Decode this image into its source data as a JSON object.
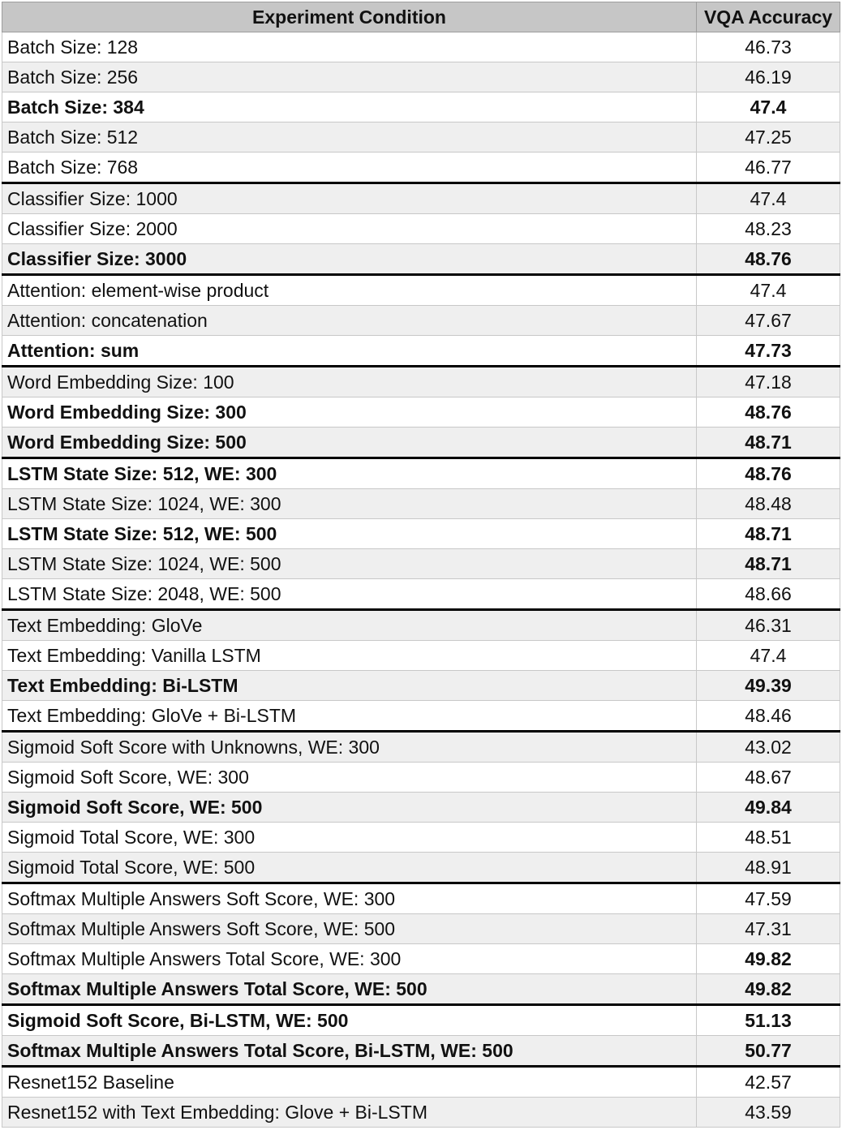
{
  "table": {
    "headers": [
      "Experiment Condition",
      "VQA Accuracy"
    ],
    "groups": [
      {
        "rows": [
          {
            "condition": "Batch Size: 128",
            "accuracy": "46.73"
          },
          {
            "condition": "Batch Size: 256",
            "accuracy": "46.19"
          },
          {
            "condition": "Batch Size: 384",
            "accuracy": "47.4",
            "bold": true
          },
          {
            "condition": "Batch Size: 512",
            "accuracy": "47.25"
          },
          {
            "condition": "Batch Size: 768",
            "accuracy": "46.77"
          }
        ]
      },
      {
        "rows": [
          {
            "condition": "Classifier Size: 1000",
            "accuracy": "47.4"
          },
          {
            "condition": "Classifier Size: 2000",
            "accuracy": "48.23"
          },
          {
            "condition": "Classifier Size: 3000",
            "accuracy": "48.76",
            "bold": true
          }
        ]
      },
      {
        "rows": [
          {
            "condition": "Attention: element-wise product",
            "accuracy": "47.4"
          },
          {
            "condition": "Attention: concatenation",
            "accuracy": "47.67"
          },
          {
            "condition": "Attention: sum",
            "accuracy": "47.73",
            "bold": true
          }
        ]
      },
      {
        "rows": [
          {
            "condition": "Word Embedding Size: 100",
            "accuracy": "47.18"
          },
          {
            "condition": "Word Embedding Size: 300",
            "accuracy": "48.76",
            "bold": true
          },
          {
            "condition": "Word Embedding Size: 500",
            "accuracy": "48.71",
            "bold": true
          }
        ]
      },
      {
        "rows": [
          {
            "condition": "LSTM State Size: 512, WE: 300",
            "accuracy": "48.76",
            "bold": true
          },
          {
            "condition": "LSTM State Size: 1024, WE: 300",
            "accuracy": "48.48"
          },
          {
            "condition": "LSTM State Size: 512, WE: 500",
            "accuracy": "48.71",
            "bold": true
          },
          {
            "condition": "LSTM State Size: 1024, WE: 500",
            "accuracy": "48.71",
            "bold_value": true
          },
          {
            "condition": "LSTM State Size: 2048, WE: 500",
            "accuracy": "48.66"
          }
        ]
      },
      {
        "rows": [
          {
            "condition": "Text Embedding: GloVe",
            "accuracy": "46.31"
          },
          {
            "condition": "Text Embedding: Vanilla LSTM",
            "accuracy": "47.4"
          },
          {
            "condition": "Text Embedding: Bi-LSTM",
            "accuracy": "49.39",
            "bold": true
          },
          {
            "condition": "Text Embedding: GloVe + Bi-LSTM",
            "accuracy": "48.46"
          }
        ]
      },
      {
        "rows": [
          {
            "condition": "Sigmoid Soft Score with Unknowns, WE: 300",
            "accuracy": "43.02"
          },
          {
            "condition": "Sigmoid Soft Score, WE: 300",
            "accuracy": "48.67"
          },
          {
            "condition": "Sigmoid Soft Score, WE: 500",
            "accuracy": "49.84",
            "bold": true
          },
          {
            "condition": "Sigmoid Total Score, WE: 300",
            "accuracy": "48.51"
          },
          {
            "condition": "Sigmoid Total Score, WE: 500",
            "accuracy": "48.91"
          }
        ]
      },
      {
        "rows": [
          {
            "condition": "Softmax Multiple Answers Soft Score, WE: 300",
            "accuracy": "47.59"
          },
          {
            "condition": "Softmax Multiple Answers Soft Score, WE: 500",
            "accuracy": "47.31"
          },
          {
            "condition": "Softmax Multiple Answers Total Score, WE: 300",
            "accuracy": "49.82",
            "bold_value": true
          },
          {
            "condition": "Softmax Multiple Answers Total Score, WE: 500",
            "accuracy": "49.82",
            "bold": true
          }
        ]
      },
      {
        "rows": [
          {
            "condition": "Sigmoid Soft Score, Bi-LSTM, WE: 500",
            "accuracy": "51.13",
            "bold": true
          },
          {
            "condition": "Softmax Multiple Answers Total Score, Bi-LSTM, WE: 500",
            "accuracy": "50.77",
            "bold": true
          }
        ]
      },
      {
        "rows": [
          {
            "condition": "Resnet152 Baseline",
            "accuracy": "42.57"
          },
          {
            "condition": "Resnet152 with Text Embedding: Glove + Bi-LSTM",
            "accuracy": "43.59"
          }
        ]
      }
    ]
  }
}
